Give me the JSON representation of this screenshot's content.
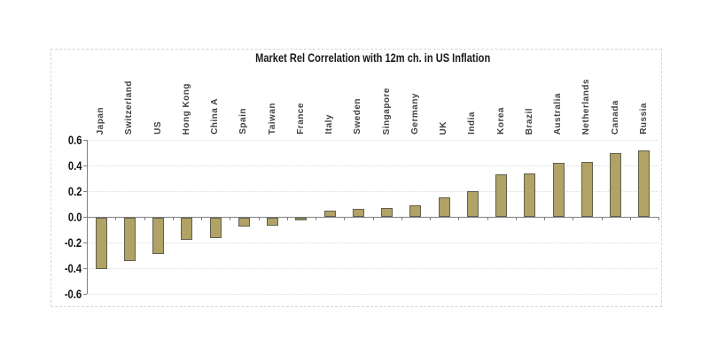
{
  "chart_data": {
    "type": "bar",
    "title": "Market Rel Correlation with 12m ch.  in US Inflation",
    "categories": [
      "Japan",
      "Switzerland",
      "US",
      "Hong Kong",
      "China A",
      "Spain",
      "Taiwan",
      "France",
      "Italy",
      "Sweden",
      "Singapore",
      "Germany",
      "UK",
      "India",
      "Korea",
      "Brazil",
      "Australia",
      "Netherlands",
      "Canada",
      "Russia"
    ],
    "values": [
      -0.4,
      -0.34,
      -0.28,
      -0.17,
      -0.16,
      -0.07,
      -0.06,
      -0.02,
      0.05,
      0.06,
      0.07,
      0.09,
      0.15,
      0.2,
      0.33,
      0.34,
      0.42,
      0.43,
      0.5,
      0.52
    ],
    "xlabel": "",
    "ylabel": "",
    "ylim": [
      -0.6,
      0.6
    ],
    "ytick_labels": [
      "0.6",
      "0.4",
      "0.2",
      "0.0",
      "-0.2",
      "-0.4",
      "-0.6"
    ],
    "yticks": [
      0.6,
      0.4,
      0.2,
      0.0,
      -0.2,
      -0.4,
      -0.6
    ],
    "grid": true,
    "legend": "none",
    "colors": {
      "bar_fill": "#b1a265",
      "bar_border": "#5f5f4e",
      "axis": "#7f7f7f",
      "gridline": "#d9d9d9",
      "frame_border": "#d6d6d6",
      "title_text": "#1a1a1a",
      "category_label_text": "#404040"
    }
  }
}
